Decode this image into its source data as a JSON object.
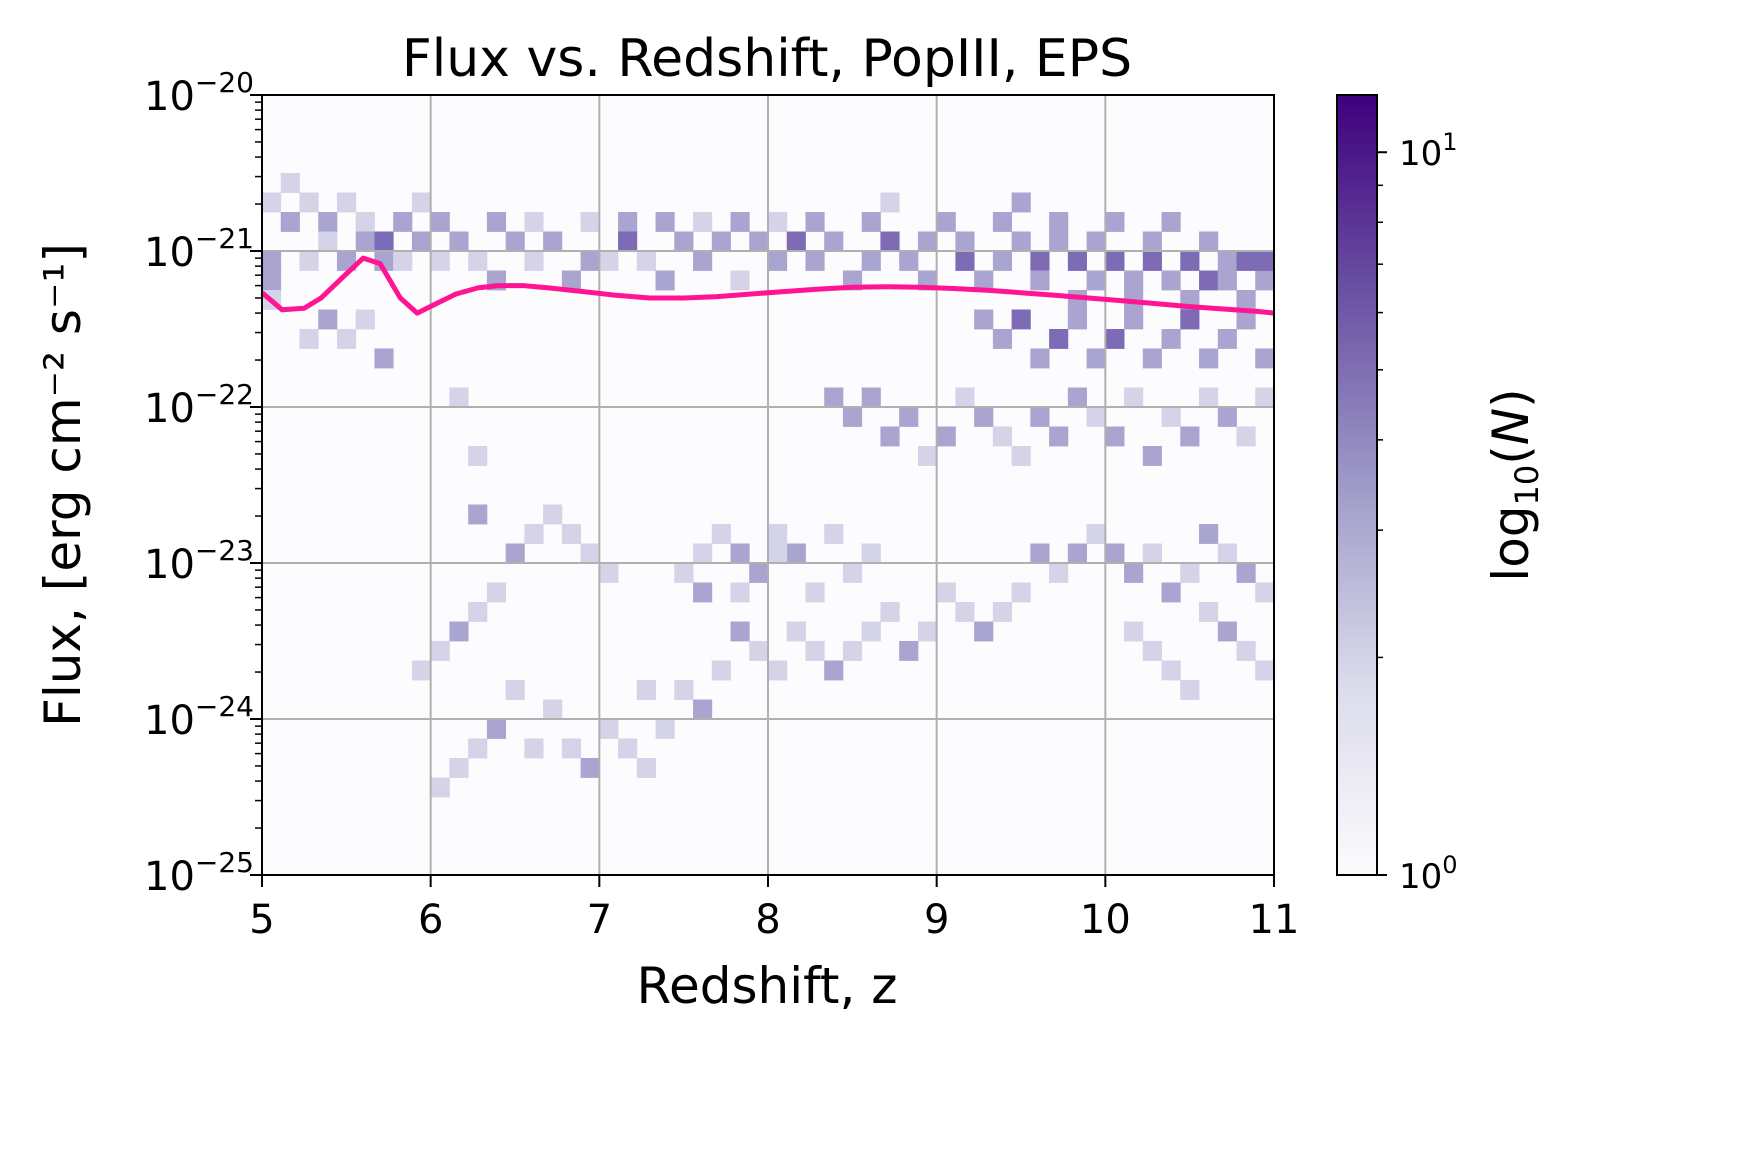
{
  "chart_data": {
    "type": "heatmap",
    "title": "Flux vs. Redshift, PopIII, EPS",
    "xlabel": "Redshift, z",
    "ylabel": "Flux, [erg cm⁻² s⁻¹]",
    "xlim": [
      5,
      11
    ],
    "ylim": [
      1e-25,
      1e-20
    ],
    "yscale": "log",
    "grid": true,
    "x_ticks": [
      "5",
      "6",
      "7",
      "8",
      "9",
      "10",
      "11"
    ],
    "y_ticks": [
      {
        "base": "10",
        "exp": "−25",
        "value": 1e-25
      },
      {
        "base": "10",
        "exp": "−24",
        "value": 1e-24
      },
      {
        "base": "10",
        "exp": "−23",
        "value": 1e-23
      },
      {
        "base": "10",
        "exp": "−22",
        "value": 1e-22
      },
      {
        "base": "10",
        "exp": "−21",
        "value": 1e-21
      },
      {
        "base": "10",
        "exp": "−20",
        "value": 1e-20
      }
    ],
    "colorbar": {
      "label": "log₁₀(N)",
      "label_base": "log",
      "label_sub": "10",
      "label_var": "N",
      "scale": "log",
      "range": [
        1,
        12
      ],
      "ticks": [
        {
          "base": "10",
          "exp": "0",
          "value": 1
        },
        {
          "base": "10",
          "exp": "1",
          "value": 10
        }
      ],
      "colormap": "Purples",
      "color_low": "#fcfbfd",
      "color_high": "#3f007d"
    },
    "bins": {
      "x_bins": 54,
      "x_range": [
        5,
        11
      ],
      "y_bins": 40,
      "logy_range": [
        -25,
        -20
      ]
    },
    "cells": [
      [
        0,
        34,
        1
      ],
      [
        0,
        31,
        2
      ],
      [
        0,
        30,
        2
      ],
      [
        1,
        33,
        2
      ],
      [
        1,
        35,
        1
      ],
      [
        2,
        34,
        1
      ],
      [
        2,
        31,
        1
      ],
      [
        3,
        33,
        2
      ],
      [
        3,
        32,
        1
      ],
      [
        4,
        34,
        1
      ],
      [
        4,
        31,
        2
      ],
      [
        5,
        33,
        1
      ],
      [
        5,
        32,
        2
      ],
      [
        6,
        32,
        3
      ],
      [
        6,
        31,
        2
      ],
      [
        7,
        33,
        2
      ],
      [
        7,
        31,
        1
      ],
      [
        8,
        34,
        1
      ],
      [
        8,
        32,
        2
      ],
      [
        9,
        33,
        2
      ],
      [
        9,
        31,
        1
      ],
      [
        10,
        32,
        2
      ],
      [
        11,
        31,
        1
      ],
      [
        12,
        33,
        2
      ],
      [
        12,
        30,
        2
      ],
      [
        13,
        32,
        2
      ],
      [
        14,
        33,
        1
      ],
      [
        14,
        31,
        1
      ],
      [
        15,
        32,
        2
      ],
      [
        16,
        30,
        2
      ],
      [
        17,
        33,
        1
      ],
      [
        17,
        31,
        2
      ],
      [
        18,
        31,
        1
      ],
      [
        19,
        33,
        2
      ],
      [
        19,
        32,
        3
      ],
      [
        20,
        31,
        1
      ],
      [
        21,
        33,
        2
      ],
      [
        21,
        30,
        2
      ],
      [
        22,
        32,
        2
      ],
      [
        23,
        33,
        1
      ],
      [
        23,
        31,
        2
      ],
      [
        24,
        32,
        2
      ],
      [
        25,
        33,
        2
      ],
      [
        25,
        30,
        1
      ],
      [
        26,
        32,
        2
      ],
      [
        27,
        31,
        2
      ],
      [
        27,
        33,
        1
      ],
      [
        28,
        32,
        3
      ],
      [
        29,
        31,
        2
      ],
      [
        29,
        33,
        2
      ],
      [
        30,
        32,
        2
      ],
      [
        31,
        30,
        2
      ],
      [
        32,
        33,
        2
      ],
      [
        32,
        31,
        2
      ],
      [
        33,
        32,
        3
      ],
      [
        33,
        34,
        1
      ],
      [
        34,
        31,
        2
      ],
      [
        35,
        32,
        2
      ],
      [
        35,
        30,
        2
      ],
      [
        36,
        33,
        2
      ],
      [
        37,
        31,
        3
      ],
      [
        37,
        32,
        2
      ],
      [
        38,
        30,
        2
      ],
      [
        39,
        33,
        2
      ],
      [
        39,
        31,
        2
      ],
      [
        40,
        32,
        2
      ],
      [
        40,
        34,
        2
      ],
      [
        41,
        31,
        3
      ],
      [
        41,
        30,
        2
      ],
      [
        42,
        33,
        2
      ],
      [
        42,
        32,
        2
      ],
      [
        43,
        31,
        3
      ],
      [
        43,
        29,
        2
      ],
      [
        44,
        30,
        2
      ],
      [
        44,
        32,
        2
      ],
      [
        45,
        31,
        3
      ],
      [
        45,
        33,
        2
      ],
      [
        46,
        30,
        2
      ],
      [
        46,
        29,
        2
      ],
      [
        47,
        31,
        3
      ],
      [
        47,
        32,
        2
      ],
      [
        48,
        30,
        2
      ],
      [
        48,
        33,
        2
      ],
      [
        49,
        31,
        3
      ],
      [
        49,
        29,
        2
      ],
      [
        50,
        30,
        3
      ],
      [
        50,
        32,
        2
      ],
      [
        51,
        31,
        2
      ],
      [
        51,
        30,
        2
      ],
      [
        52,
        31,
        3
      ],
      [
        52,
        29,
        2
      ],
      [
        53,
        30,
        2
      ],
      [
        53,
        31,
        3
      ],
      [
        0,
        29,
        1
      ],
      [
        2,
        27,
        1
      ],
      [
        3,
        28,
        2
      ],
      [
        4,
        27,
        1
      ],
      [
        5,
        28,
        1
      ],
      [
        6,
        26,
        2
      ],
      [
        38,
        28,
        2
      ],
      [
        39,
        27,
        2
      ],
      [
        40,
        28,
        3
      ],
      [
        41,
        26,
        2
      ],
      [
        42,
        27,
        3
      ],
      [
        43,
        28,
        2
      ],
      [
        44,
        26,
        2
      ],
      [
        45,
        27,
        3
      ],
      [
        46,
        28,
        2
      ],
      [
        47,
        26,
        2
      ],
      [
        48,
        27,
        2
      ],
      [
        49,
        28,
        3
      ],
      [
        50,
        26,
        2
      ],
      [
        51,
        27,
        2
      ],
      [
        52,
        28,
        2
      ],
      [
        53,
        26,
        2
      ],
      [
        30,
        24,
        2
      ],
      [
        31,
        23,
        2
      ],
      [
        32,
        24,
        2
      ],
      [
        33,
        22,
        2
      ],
      [
        34,
        23,
        2
      ],
      [
        35,
        21,
        1
      ],
      [
        36,
        22,
        2
      ],
      [
        37,
        24,
        1
      ],
      [
        38,
        23,
        2
      ],
      [
        39,
        22,
        1
      ],
      [
        40,
        21,
        1
      ],
      [
        41,
        23,
        2
      ],
      [
        42,
        22,
        2
      ],
      [
        43,
        24,
        2
      ],
      [
        44,
        23,
        1
      ],
      [
        45,
        22,
        2
      ],
      [
        46,
        24,
        1
      ],
      [
        47,
        21,
        2
      ],
      [
        48,
        23,
        1
      ],
      [
        49,
        22,
        2
      ],
      [
        50,
        24,
        1
      ],
      [
        51,
        23,
        2
      ],
      [
        52,
        22,
        1
      ],
      [
        53,
        24,
        1
      ],
      [
        10,
        24,
        1
      ],
      [
        11,
        21,
        1
      ],
      [
        11,
        18,
        2
      ],
      [
        23,
        16,
        1
      ],
      [
        24,
        17,
        1
      ],
      [
        25,
        16,
        2
      ],
      [
        26,
        15,
        1
      ],
      [
        27,
        17,
        1
      ],
      [
        28,
        16,
        2
      ],
      [
        29,
        14,
        1
      ],
      [
        30,
        17,
        1
      ],
      [
        31,
        15,
        1
      ],
      [
        32,
        16,
        1
      ],
      [
        25,
        14,
        1
      ],
      [
        26,
        15,
        2
      ],
      [
        27,
        16,
        1
      ],
      [
        22,
        15,
        1
      ],
      [
        23,
        14,
        2
      ],
      [
        18,
        15,
        1
      ],
      [
        17,
        16,
        1
      ],
      [
        16,
        17,
        1
      ],
      [
        15,
        18,
        1
      ],
      [
        14,
        17,
        1
      ],
      [
        13,
        16,
        2
      ],
      [
        12,
        14,
        1
      ],
      [
        11,
        13,
        1
      ],
      [
        10,
        12,
        2
      ],
      [
        9,
        11,
        1
      ],
      [
        8,
        10,
        1
      ],
      [
        45,
        16,
        2
      ],
      [
        46,
        15,
        2
      ],
      [
        47,
        16,
        1
      ],
      [
        48,
        14,
        2
      ],
      [
        49,
        15,
        1
      ],
      [
        50,
        17,
        2
      ],
      [
        51,
        16,
        1
      ],
      [
        52,
        15,
        2
      ],
      [
        53,
        14,
        1
      ],
      [
        44,
        17,
        1
      ],
      [
        43,
        16,
        2
      ],
      [
        42,
        15,
        1
      ],
      [
        41,
        16,
        2
      ],
      [
        40,
        14,
        1
      ],
      [
        39,
        13,
        1
      ],
      [
        38,
        12,
        2
      ],
      [
        37,
        13,
        1
      ],
      [
        36,
        14,
        1
      ],
      [
        35,
        12,
        1
      ],
      [
        34,
        11,
        2
      ],
      [
        33,
        13,
        1
      ],
      [
        32,
        12,
        1
      ],
      [
        31,
        11,
        1
      ],
      [
        30,
        10,
        2
      ],
      [
        29,
        11,
        1
      ],
      [
        28,
        12,
        1
      ],
      [
        27,
        10,
        1
      ],
      [
        26,
        11,
        1
      ],
      [
        25,
        12,
        2
      ],
      [
        24,
        10,
        1
      ],
      [
        22,
        9,
        1
      ],
      [
        23,
        8,
        2
      ],
      [
        20,
        9,
        1
      ],
      [
        21,
        7,
        1
      ],
      [
        19,
        6,
        1
      ],
      [
        20,
        5,
        1
      ],
      [
        16,
        6,
        1
      ],
      [
        17,
        5,
        2
      ],
      [
        18,
        7,
        1
      ],
      [
        15,
        8,
        1
      ],
      [
        14,
        6,
        1
      ],
      [
        13,
        9,
        1
      ],
      [
        12,
        7,
        2
      ],
      [
        11,
        6,
        1
      ],
      [
        10,
        5,
        1
      ],
      [
        9,
        4,
        1
      ],
      [
        46,
        12,
        1
      ],
      [
        47,
        11,
        1
      ],
      [
        48,
        10,
        1
      ],
      [
        49,
        9,
        1
      ],
      [
        50,
        13,
        1
      ],
      [
        51,
        12,
        2
      ],
      [
        52,
        11,
        1
      ],
      [
        53,
        10,
        1
      ]
    ],
    "pink_line": {
      "color": "#ff1493",
      "x": [
        5.0,
        5.12,
        5.25,
        5.35,
        5.48,
        5.6,
        5.7,
        5.82,
        5.92,
        6.05,
        6.15,
        6.28,
        6.4,
        6.55,
        6.7,
        6.9,
        7.1,
        7.3,
        7.5,
        7.7,
        7.9,
        8.1,
        8.3,
        8.5,
        8.7,
        8.9,
        9.1,
        9.3,
        9.5,
        9.7,
        9.9,
        10.1,
        10.3,
        10.5,
        10.7,
        10.9,
        11.0
      ],
      "y": [
        5.4e-22,
        4.2e-22,
        4.3e-22,
        5e-22,
        6.8e-22,
        9e-22,
        8.3e-22,
        5e-22,
        4e-22,
        4.7e-22,
        5.3e-22,
        5.8e-22,
        6e-22,
        6e-22,
        5.8e-22,
        5.5e-22,
        5.2e-22,
        5e-22,
        5e-22,
        5.1e-22,
        5.3e-22,
        5.5e-22,
        5.7e-22,
        5.85e-22,
        5.9e-22,
        5.85e-22,
        5.75e-22,
        5.6e-22,
        5.4e-22,
        5.2e-22,
        5e-22,
        4.8e-22,
        4.6e-22,
        4.4e-22,
        4.25e-22,
        4.1e-22,
        4e-22
      ]
    }
  }
}
